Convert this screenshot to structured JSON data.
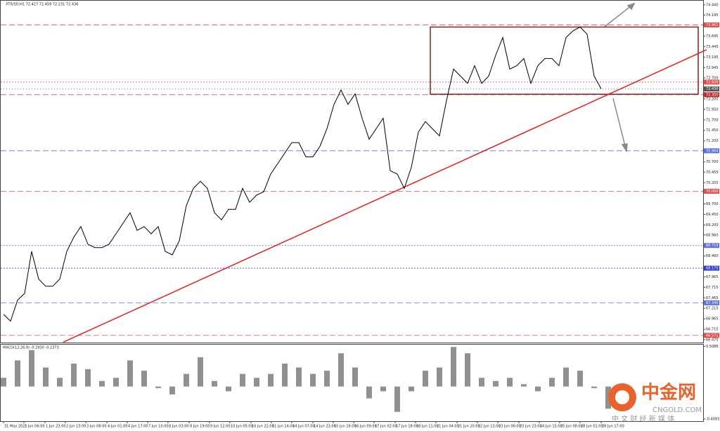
{
  "chart_data": [
    {
      "type": "line",
      "title": "XTIUSD,H1  72.427 72.459 72.231 72.436",
      "color": "#000000",
      "values": [
        67.07,
        66.91,
        67.41,
        67.57,
        68.57,
        67.91,
        67.74,
        67.74,
        67.91,
        68.57,
        68.91,
        69.16,
        68.74,
        68.66,
        68.66,
        68.74,
        68.99,
        69.24,
        69.49,
        69.07,
        69.16,
        68.99,
        69.16,
        68.57,
        68.49,
        68.82,
        69.66,
        70.07,
        70.24,
        70.07,
        69.49,
        69.32,
        69.57,
        69.57,
        70.07,
        69.74,
        69.91,
        69.99,
        70.41,
        70.66,
        70.91,
        71.16,
        71.16,
        70.82,
        70.82,
        71.07,
        71.49,
        72.07,
        72.41,
        72.07,
        72.32,
        71.74,
        71.24,
        71.49,
        71.74,
        70.49,
        70.41,
        70.07,
        70.57,
        71.41,
        71.66,
        71.49,
        71.32,
        72.16,
        72.91,
        72.74,
        72.57,
        72.99,
        72.57,
        72.74,
        73.24,
        73.66,
        72.91,
        72.99,
        73.16,
        72.57,
        72.99,
        73.16,
        73.16,
        72.99,
        73.66,
        73.82,
        73.91,
        73.74,
        72.74,
        72.44
      ],
      "ylim": [
        66.4,
        74.52
      ],
      "yticks": [
        {
          "value": 74.44,
          "label": "74.440"
        },
        {
          "value": 74.195,
          "label": "74.195"
        },
        {
          "value": 73.695,
          "label": "73.695"
        },
        {
          "value": 73.445,
          "label": "73.445"
        },
        {
          "value": 73.195,
          "label": "73.195"
        },
        {
          "value": 72.945,
          "label": "72.945"
        },
        {
          "value": 72.7,
          "label": "72.700"
        },
        {
          "value": 72.2,
          "label": "72.200"
        },
        {
          "value": 71.95,
          "label": "71.950"
        },
        {
          "value": 71.7,
          "label": "71.700"
        },
        {
          "value": 71.45,
          "label": "71.450"
        },
        {
          "value": 71.2,
          "label": "71.200"
        },
        {
          "value": 70.7,
          "label": "70.700"
        },
        {
          "value": 70.455,
          "label": "70.455"
        },
        {
          "value": 70.205,
          "label": "70.205"
        },
        {
          "value": 69.7,
          "label": "69.700"
        },
        {
          "value": 69.45,
          "label": "69.450"
        },
        {
          "value": 69.2,
          "label": "69.200"
        },
        {
          "value": 68.96,
          "label": "68.960"
        },
        {
          "value": 68.46,
          "label": "68.460"
        },
        {
          "value": 67.965,
          "label": "67.965"
        },
        {
          "value": 67.715,
          "label": "67.715"
        },
        {
          "value": 67.465,
          "label": "67.465"
        },
        {
          "value": 67.215,
          "label": "67.215"
        },
        {
          "value": 66.965,
          "label": "66.965"
        },
        {
          "value": 66.715,
          "label": "66.715"
        },
        {
          "value": 66.47,
          "label": "66.470"
        }
      ],
      "xticks": [
        {
          "value": 0,
          "label": "31 May 2021"
        },
        {
          "value": 2.9,
          "label": "1 Jun 06:00"
        },
        {
          "value": 5.9,
          "label": "1 Jun 23:00"
        },
        {
          "value": 8.8,
          "label": "2 Jun 15:00"
        },
        {
          "value": 11.7,
          "label": "3 Jun 08:00"
        },
        {
          "value": 14.7,
          "label": "4 Jun 01:00"
        },
        {
          "value": 17.6,
          "label": "4 Jun 17:00"
        },
        {
          "value": 20.5,
          "label": "7 Jun 10:00"
        },
        {
          "value": 23.4,
          "label": "8 Jun 03:00"
        },
        {
          "value": 26.4,
          "label": "8 Jun 19:00"
        },
        {
          "value": 29.3,
          "label": "9 Jun 12:00"
        },
        {
          "value": 32.2,
          "label": "10 Jun 05:00"
        },
        {
          "value": 35.2,
          "label": "10 Jun 21:00"
        },
        {
          "value": 38.1,
          "label": "11 Jun 14:00"
        },
        {
          "value": 41,
          "label": "14 Jun 07:00"
        },
        {
          "value": 44,
          "label": "14 Jun 23:00"
        },
        {
          "value": 46.9,
          "label": "15 Jun 16:00"
        },
        {
          "value": 49.8,
          "label": "16 Jun 09:00"
        },
        {
          "value": 52.7,
          "label": "17 Jun 02:00"
        },
        {
          "value": 55.7,
          "label": "17 Jun 18:00"
        },
        {
          "value": 58.6,
          "label": "18 Jun 11:00"
        },
        {
          "value": 61.5,
          "label": "21 Jun 04:00"
        },
        {
          "value": 64.5,
          "label": "21 Jun 20:00"
        },
        {
          "value": 67.4,
          "label": "22 Jun 13:00"
        },
        {
          "value": 70.3,
          "label": "23 Jun 06:00"
        },
        {
          "value": 73.3,
          "label": "23 Jun 23:00"
        },
        {
          "value": 76.2,
          "label": "24 Jun 15:00"
        },
        {
          "value": 79.1,
          "label": "25 Jun 08:00"
        },
        {
          "value": 82,
          "label": "28 Jun 01:00"
        },
        {
          "value": 85,
          "label": "28 Jun 17:00"
        }
      ],
      "levels": [
        {
          "value": 73.961,
          "label": "73.961",
          "color": "#e05050",
          "dash": "8 4"
        },
        {
          "value": 72.6,
          "label": "72.600",
          "color": "#e05050",
          "dash": "2 2"
        },
        {
          "value": 72.436,
          "label": "72.436",
          "color": "#555555",
          "dash": "1 3"
        },
        {
          "value": 72.3,
          "label": "72.300",
          "color": "#c03030",
          "dash": "8 4"
        },
        {
          "value": 70.964,
          "label": "70.964",
          "color": "#6070e0",
          "dash": "8 4"
        },
        {
          "value": 70.0,
          "label": "70.000",
          "color": "#e05050",
          "dash": "8 4"
        },
        {
          "value": 68.71,
          "label": "68.710",
          "color": "#6070e0",
          "dash": "2 2"
        },
        {
          "value": 68.17,
          "label": "68.170",
          "color": "#3040d0",
          "dash": "2 2"
        },
        {
          "value": 67.346,
          "label": "67.346",
          "color": "#6070e0",
          "dash": "8 4"
        },
        {
          "value": 66.571,
          "label": "66.571",
          "color": "#e05050",
          "dash": "8 4"
        }
      ],
      "trendline": {
        "x": [
          8.5,
          100
        ],
        "y": [
          66.41,
          73.37
        ],
        "color": "#e02020"
      },
      "box": {
        "x": [
          60.7,
          98.8
        ],
        "y": [
          72.31,
          73.91
        ],
        "color": "#8b1a1a"
      }
    },
    {
      "type": "bar",
      "title": "MACD(12,26,9) -0.2930 -0.2373",
      "color": "#909090",
      "values": [
        0.11,
        0.33,
        0.46,
        0.24,
        0.11,
        0.29,
        0.22,
        0.07,
        0.11,
        0.33,
        0.2,
        -0.02,
        -0.1,
        0.16,
        0.37,
        0.07,
        -0.06,
        0.16,
        0.11,
        0.16,
        0.29,
        0.24,
        0.16,
        0.2,
        0.42,
        0.24,
        -0.15,
        -0.06,
        -0.32,
        -0.06,
        0.2,
        0.24,
        0.5,
        0.42,
        0.11,
        0.07,
        0.11,
        0.03,
        -0.06,
        0.11,
        0.24,
        0.2,
        -0.02,
        -0.28
      ],
      "ylim": [
        -0.42,
        0.52
      ],
      "yticks": [
        0.5086,
        -0.4093
      ]
    }
  ],
  "watermark": {
    "brand": "中金网",
    "site": "CNGOLD.COM",
    "slogan": "中 文 财 经 新 媒 体"
  }
}
